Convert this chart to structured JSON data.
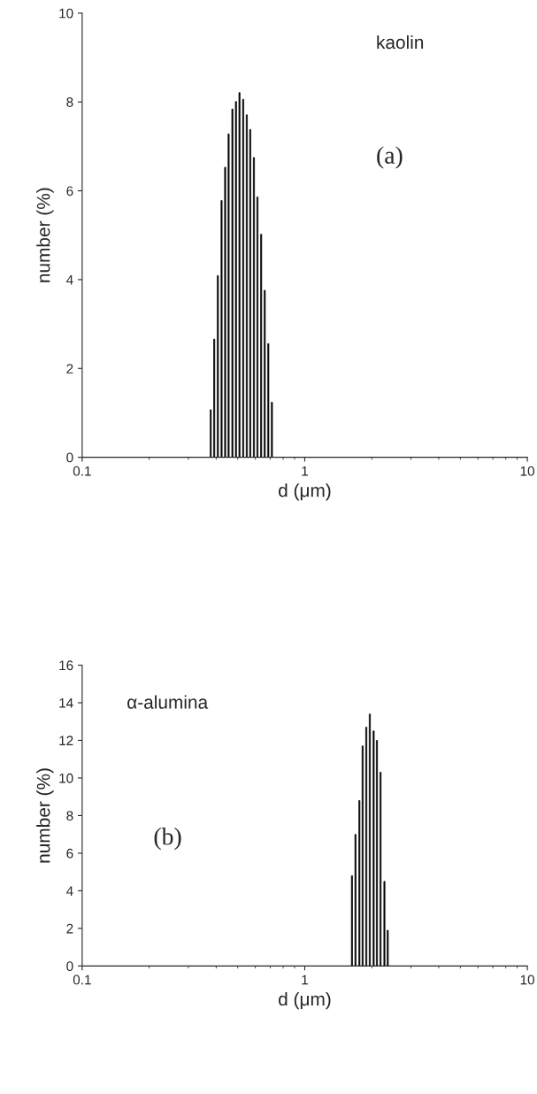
{
  "chart_data": [
    {
      "type": "bar",
      "xlabel": "d (μm)",
      "ylabel": "number (%)",
      "log": "x",
      "color": "#000000",
      "annotations": [
        "kaolin",
        "(a)"
      ],
      "x": [
        0.378,
        0.392,
        0.407,
        0.423,
        0.439,
        0.455,
        0.473,
        0.491,
        0.509,
        0.529,
        0.549,
        0.569,
        0.591,
        0.613,
        0.637,
        0.661,
        0.686,
        0.712
      ],
      "values": [
        1.07,
        2.66,
        4.09,
        5.78,
        6.53,
        7.28,
        7.84,
        8.01,
        8.21,
        8.06,
        7.71,
        7.38,
        6.75,
        5.86,
        5.02,
        3.76,
        2.56,
        1.24
      ],
      "xlim": [
        0.1,
        10
      ],
      "xticks": [
        0.1,
        1,
        10
      ],
      "ylim": [
        0,
        10
      ],
      "yticks": [
        0,
        2,
        4,
        6,
        8,
        10
      ],
      "grid": false
    },
    {
      "type": "bar",
      "xlabel": "d (μm)",
      "ylabel": "number (%)",
      "log": "x",
      "color": "#000000",
      "annotations": [
        "α-alumina",
        "(b)"
      ],
      "x": [
        1.63,
        1.69,
        1.76,
        1.82,
        1.89,
        1.96,
        2.04,
        2.11,
        2.19,
        2.28,
        2.36
      ],
      "values": [
        4.8,
        7.0,
        8.8,
        11.7,
        12.7,
        13.4,
        12.5,
        12.0,
        10.3,
        4.5,
        1.9
      ],
      "xlim": [
        0.1,
        10
      ],
      "xticks": [
        0.1,
        1,
        10
      ],
      "ylim": [
        0,
        16
      ],
      "yticks": [
        0,
        2,
        4,
        6,
        8,
        10,
        12,
        14,
        16
      ],
      "grid": false
    }
  ]
}
